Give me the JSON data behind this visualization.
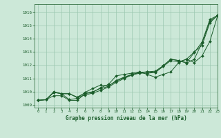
{
  "title": "Graphe pression niveau de la mer (hPa)",
  "background_color": "#cce8d8",
  "grid_color": "#9cc8b0",
  "line_color": "#1a5c2a",
  "marker_color": "#1a5c2a",
  "xlim": [
    -0.5,
    23
  ],
  "ylim": [
    1008.8,
    1016.6
  ],
  "yticks": [
    1009,
    1010,
    1011,
    1012,
    1013,
    1014,
    1015,
    1016
  ],
  "xticks": [
    0,
    1,
    2,
    3,
    4,
    5,
    6,
    7,
    8,
    9,
    10,
    11,
    12,
    13,
    14,
    15,
    16,
    17,
    18,
    19,
    20,
    21,
    22,
    23
  ],
  "series": [
    [
      1009.35,
      1009.4,
      1009.7,
      1009.7,
      1009.35,
      1009.35,
      1009.85,
      1009.95,
      1010.3,
      1010.55,
      1011.2,
      1011.3,
      1011.4,
      1011.5,
      1011.3,
      1011.1,
      1011.3,
      1011.5,
      1012.2,
      1012.45,
      1012.2,
      1012.7,
      1013.8,
      1015.75
    ],
    [
      1009.35,
      1009.4,
      1010.0,
      1009.85,
      1009.4,
      1009.5,
      1009.95,
      1010.25,
      1010.5,
      1010.45,
      1010.8,
      1011.05,
      1011.3,
      1011.45,
      1011.5,
      1011.45,
      1011.9,
      1012.35,
      1012.25,
      1012.45,
      1013.0,
      1013.5,
      1015.2,
      1015.75
    ],
    [
      1009.35,
      1009.4,
      1009.95,
      1009.85,
      1009.85,
      1009.6,
      1009.9,
      1010.0,
      1010.25,
      1010.4,
      1010.85,
      1011.1,
      1011.3,
      1011.45,
      1011.5,
      1011.55,
      1011.95,
      1012.45,
      1012.35,
      1012.2,
      1012.95,
      1013.75,
      1015.45,
      1015.75
    ],
    [
      1009.35,
      1009.4,
      1009.95,
      1009.85,
      1009.85,
      1009.55,
      1009.75,
      1009.9,
      1010.1,
      1010.35,
      1010.7,
      1011.0,
      1011.25,
      1011.4,
      1011.4,
      1011.45,
      1011.95,
      1012.45,
      1012.35,
      1012.15,
      1012.45,
      1013.7,
      1015.3,
      1015.75
    ]
  ],
  "markers_on_series": [
    0,
    1,
    2,
    3
  ]
}
